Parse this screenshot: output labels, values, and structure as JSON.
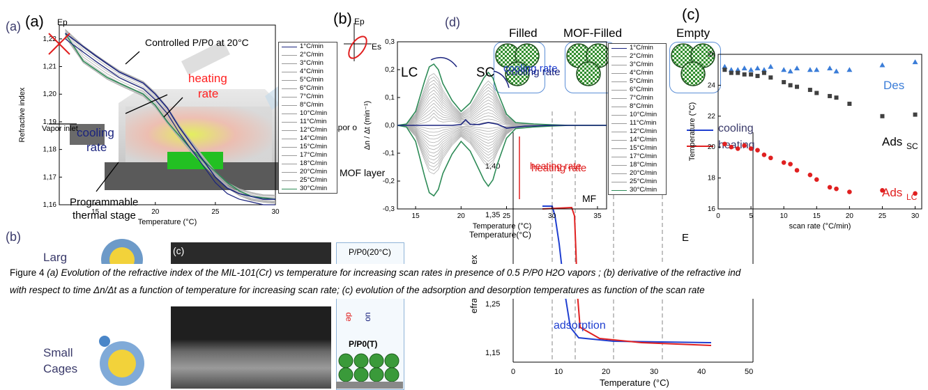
{
  "figure": {
    "caption": {
      "label": "Figure 4",
      "line1": "(a) Evolution of the refractive index of the MIL-101(Cr) vs temperature for increasing scan rates in presence of 0.5 P/P0 H2O vapors ; (b) derivative of the refractive ind",
      "line2": "with respect to time Δn/Δt as a function of temperature for increasing scan rate; (c) evolution of the adsorption and desorption temperatures as function of the scan rate"
    },
    "background_labels": {
      "a_small": "(a)",
      "b_small": "(b)",
      "c_small_right": "(c)",
      "c_scheme": "(c)",
      "d": "(d)",
      "filled": "Filled",
      "mof_filled": "MOF-Filled",
      "empty": "Empty",
      "small_cages": "Small",
      "small_cages2": "Cages",
      "large_cut": "Larg",
      "pp0_20": "P/P0(20°C)",
      "pp0_t": "P/P0(T)",
      "mof_layer": "MOF layer",
      "mf": "MF",
      "e": "E",
      "heating_rate_bg": "heating rate",
      "cooling_rate_bg": "cooling rate",
      "adsorption": "adsorption",
      "de": "de",
      "upward_text": "uo",
      "vapor_out": "apor o",
      "refractive_index_bg": "efractive index",
      "temperature_bg": "Temperature (°C)",
      "temperature_d": "Temperature(°C)",
      "cooling_legend": "cooling",
      "heating_legend": "heating",
      "ep": "Ep",
      "es": "Es"
    },
    "panel_a": {
      "tag": "(a)",
      "xlabel": "Temperature (°C)",
      "ylabel": "Refractive index",
      "annot_controlled": "Controlled P/P0 at 20°C",
      "annot_heating": "heating",
      "annot_rate": "rate",
      "annot_cooling": "cooling",
      "annot_rate2": "rate",
      "annot_vapor_inlet": "Vapor inlet",
      "annot_stage1": "Programmable",
      "annot_stage2": "thermal stage",
      "annot_ep": "Ep"
    },
    "panel_b": {
      "tag": "(b)",
      "xlabel": "Temperature (°C)",
      "ylabel": "Δn / Δt (min⁻¹)",
      "annot_lc": "LC",
      "annot_sc": "SC",
      "annot_cooling_rate": "cooling rate",
      "annot_heating_rate": "heating rate"
    },
    "panel_c": {
      "tag": "(c)",
      "xlabel": "scan rate (°C/min)",
      "ylabel": "Temperature (°C)",
      "annot_des": "Des",
      "annot_ads_sc": "Ads",
      "annot_ads_sc_sub": "SC",
      "annot_ads_lc": "Ads",
      "annot_ads_lc_sub": "LC"
    },
    "panel_d_bg": {
      "xlabel": "Temperature (°C)",
      "yticks": [
        "1,40",
        "1,35",
        "1,30",
        "1,25",
        "1,15"
      ],
      "xticks": [
        "0",
        "10",
        "20",
        "30",
        "40",
        "50"
      ]
    },
    "legend_a": [
      "1°C/min",
      "2°C/min",
      "3°C/min",
      "4°C/min",
      "5°C/min",
      "6°C/min",
      "7°C/min",
      "8°C/min",
      "10°C/min",
      "11°C/min",
      "12°C/min",
      "14°C/min",
      "15°C/min",
      "17°C/min",
      "18°C/min",
      "20°C/min",
      "25°C/min",
      "30°C/min"
    ],
    "legend_b": [
      "1°C/min",
      "2°C/min",
      "3°C/min",
      "4°C/min",
      "5°C/min",
      "6°C/min",
      "7°C/min",
      "8°C/min",
      "10°C/min",
      "11°C/min",
      "12°C/min",
      "14°C/min",
      "15°C/min",
      "17°C/min",
      "18°C/min",
      "20°C/min",
      "25°C/min",
      "30°C/min"
    ],
    "colors": {
      "navy": "#1a237e",
      "green": "#2e8b57",
      "red": "#e02020",
      "blue": "#3b7dd8",
      "gray": "#b0b0b0",
      "dark_square": "#404040",
      "tag_purple": "#3a3a6a"
    }
  },
  "chart_data": [
    {
      "type": "line",
      "panel": "a",
      "xlabel": "Temperature (°C)",
      "ylabel": "Refractive index",
      "xlim": [
        12,
        30
      ],
      "ylim": [
        1.16,
        1.225
      ],
      "xticks": [
        15,
        20,
        25,
        30
      ],
      "yticks": [
        1.16,
        1.17,
        1.18,
        1.19,
        1.2,
        1.21,
        1.22
      ],
      "series": [
        {
          "name": "1°C/min",
          "x": [
            12.5,
            15,
            17,
            19,
            20,
            21,
            22,
            23,
            24,
            25,
            26,
            27,
            28,
            29,
            30
          ],
          "y": [
            1.222,
            1.214,
            1.208,
            1.204,
            1.2,
            1.195,
            1.188,
            1.182,
            1.176,
            1.17,
            1.166,
            1.164,
            1.163,
            1.162,
            1.162
          ]
        },
        {
          "name": "30°C/min",
          "x": [
            12.5,
            14,
            16,
            18,
            19,
            20,
            21,
            22,
            23,
            24,
            25,
            26,
            27,
            28,
            30
          ],
          "y": [
            1.222,
            1.212,
            1.206,
            1.202,
            1.2,
            1.196,
            1.19,
            1.185,
            1.18,
            1.176,
            1.172,
            1.168,
            1.165,
            1.163,
            1.162
          ]
        }
      ]
    },
    {
      "type": "line",
      "panel": "b",
      "xlabel": "Temperature (°C)",
      "ylabel": "Δn / Δt (min⁻¹)",
      "xlim": [
        13,
        36
      ],
      "ylim": [
        -0.3,
        0.3
      ],
      "xticks": [
        15,
        20,
        25,
        30,
        35
      ],
      "yticks": [
        -0.3,
        -0.2,
        -0.1,
        0.0,
        0.1,
        0.2,
        0.3
      ],
      "series": [
        {
          "name": "30°C/min",
          "x": [
            13,
            14,
            15,
            16,
            16.5,
            17,
            17.5,
            18,
            19,
            20,
            21,
            22,
            22.5,
            23,
            23.5,
            24,
            25,
            26,
            28,
            30,
            32,
            34,
            36
          ],
          "y": [
            0,
            0.005,
            0.05,
            0.16,
            0.21,
            0.22,
            0.2,
            0.15,
            0.09,
            0.05,
            0.08,
            0.14,
            0.17,
            0.19,
            0.17,
            0.12,
            0.04,
            0.01,
            0.005,
            0.002,
            0,
            0,
            0
          ]
        },
        {
          "name": "1°C/min",
          "x": [
            13,
            15,
            17,
            19,
            20,
            20.5,
            21,
            22,
            23,
            24,
            25,
            27,
            30,
            33,
            36
          ],
          "y": [
            0,
            0,
            0,
            0,
            0.003,
            0.02,
            0.004,
            0.003,
            0.01,
            0.004,
            -0.01,
            -0.003,
            0,
            0,
            0
          ]
        }
      ]
    },
    {
      "type": "scatter",
      "panel": "c",
      "xlabel": "scan rate (°C/min)",
      "ylabel": "Temperature (°C)",
      "xlim": [
        0,
        31
      ],
      "ylim": [
        16,
        26
      ],
      "xticks": [
        0,
        5,
        10,
        15,
        20,
        25,
        30
      ],
      "yticks": [
        16,
        18,
        20,
        22,
        24,
        26
      ],
      "series": [
        {
          "name": "Des",
          "x": [
            1,
            2,
            3,
            4,
            5,
            6,
            7,
            8,
            10,
            11,
            12,
            14,
            15,
            17,
            18,
            20,
            25,
            30
          ],
          "y": [
            25.2,
            25.0,
            25.0,
            25.1,
            25.0,
            25.1,
            25.0,
            25.2,
            25.0,
            24.9,
            25.1,
            25.0,
            25.0,
            25.1,
            24.9,
            25.0,
            25.3,
            25.5
          ]
        },
        {
          "name": "AdsSC",
          "x": [
            1,
            2,
            3,
            4,
            5,
            6,
            7,
            8,
            10,
            11,
            12,
            14,
            15,
            17,
            18,
            20,
            25,
            30
          ],
          "y": [
            25.0,
            24.8,
            24.8,
            24.7,
            24.7,
            24.6,
            24.8,
            24.5,
            24.2,
            24.0,
            23.9,
            23.7,
            23.5,
            23.3,
            23.2,
            22.8,
            22.0,
            22.1
          ]
        },
        {
          "name": "AdsLC",
          "x": [
            1,
            2,
            3,
            4,
            5,
            6,
            7,
            8,
            10,
            11,
            12,
            14,
            15,
            17,
            18,
            20,
            25,
            30
          ],
          "y": [
            20.2,
            20.0,
            19.9,
            20.1,
            19.9,
            19.8,
            19.5,
            19.3,
            19.0,
            18.9,
            18.5,
            18.2,
            17.9,
            17.4,
            17.3,
            17.1,
            17.2,
            17.0
          ]
        }
      ]
    }
  ]
}
